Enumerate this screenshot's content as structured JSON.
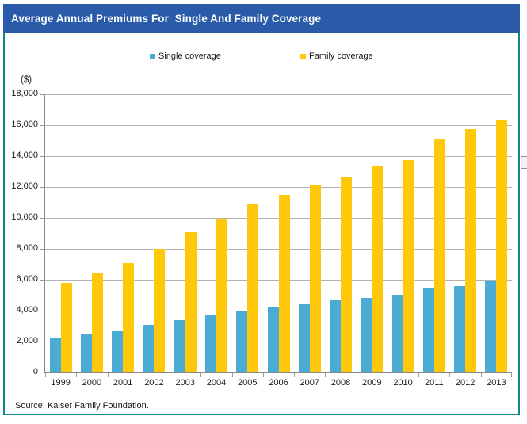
{
  "header": {
    "title": "Average Annual Premiums For  Single And Family Coverage"
  },
  "chart": {
    "unit_label": "($)",
    "source": "Source: Kaiser Family Foundation."
  },
  "colors": {
    "title_bar": "#2A5BA9",
    "frame_border": "#11898C",
    "single_coverage": "#4AACD4",
    "family_coverage": "#FFC80A",
    "gridline": "#B3B3B3",
    "axis": "#8A8A8A"
  },
  "chart_data": {
    "type": "bar",
    "title": "Average Annual Premiums For Single And Family Coverage",
    "categories": [
      "1999",
      "2000",
      "2001",
      "2002",
      "2003",
      "2004",
      "2005",
      "2006",
      "2007",
      "2008",
      "2009",
      "2010",
      "2011",
      "2012",
      "2013"
    ],
    "series": [
      {
        "name": "Single coverage",
        "color": "#4AACD4",
        "values": [
          2196,
          2471,
          2689,
          3083,
          3383,
          3695,
          4024,
          4242,
          4479,
          4704,
          4824,
          5049,
          5429,
          5615,
          5884
        ]
      },
      {
        "name": "Family coverage",
        "color": "#FFC80A",
        "values": [
          5791,
          6438,
          7061,
          8003,
          9068,
          9950,
          10880,
          11480,
          12106,
          12680,
          13375,
          13770,
          15073,
          15745,
          16351
        ]
      }
    ],
    "xlabel": "",
    "ylabel": "($)",
    "ylim": [
      0,
      18000
    ],
    "ytick_step": 2000,
    "grid": true,
    "legend_position": "top",
    "source": "Source: Kaiser Family Foundation."
  }
}
